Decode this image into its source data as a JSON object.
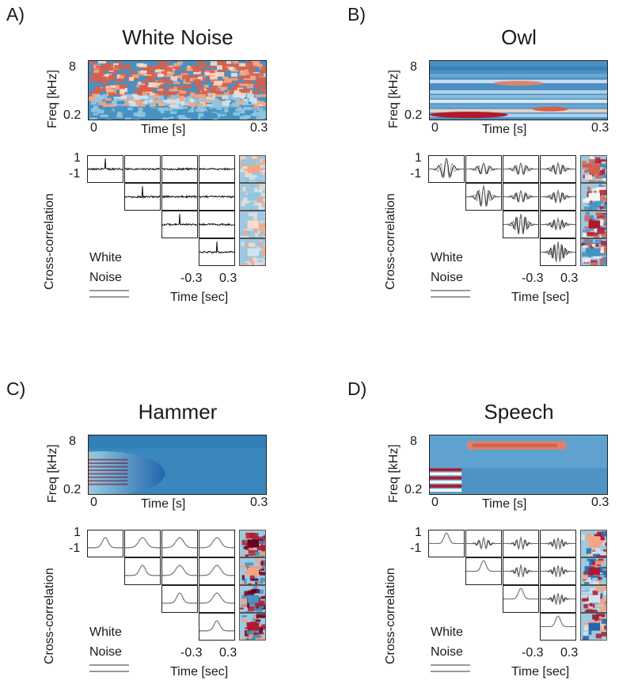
{
  "figure": {
    "panels": [
      {
        "letter": "A)",
        "title": "White Noise",
        "spec_type": "noise",
        "xc_type": "noise"
      },
      {
        "letter": "B)",
        "title": "Owl",
        "spec_type": "owl",
        "xc_type": "osc"
      },
      {
        "letter": "C)",
        "title": "Hammer",
        "spec_type": "hammer",
        "xc_type": "bump"
      },
      {
        "letter": "D)",
        "title": "Speech",
        "spec_type": "speech",
        "xc_type": "mixed"
      }
    ],
    "freq_label": "Freq [kHz]",
    "freq_top": "8",
    "freq_bottom": "0.2",
    "time_label": "Time [s]",
    "time_start": "0",
    "time_end": "0.3",
    "xc_label": "Cross-correlation",
    "xc_top": "1",
    "xc_bottom": "-1",
    "xc_legend_line1": "White",
    "xc_legend_line2": "Noise",
    "lag_left": "-0.3",
    "lag_right": "0.3",
    "lag_label": "Time [sec]"
  },
  "colors": {
    "red": "#b2182b",
    "lightred": "#ef8a62",
    "blue": "#2166ac",
    "lightblue": "#67a9cf",
    "mid": "#d1e5f0"
  }
}
